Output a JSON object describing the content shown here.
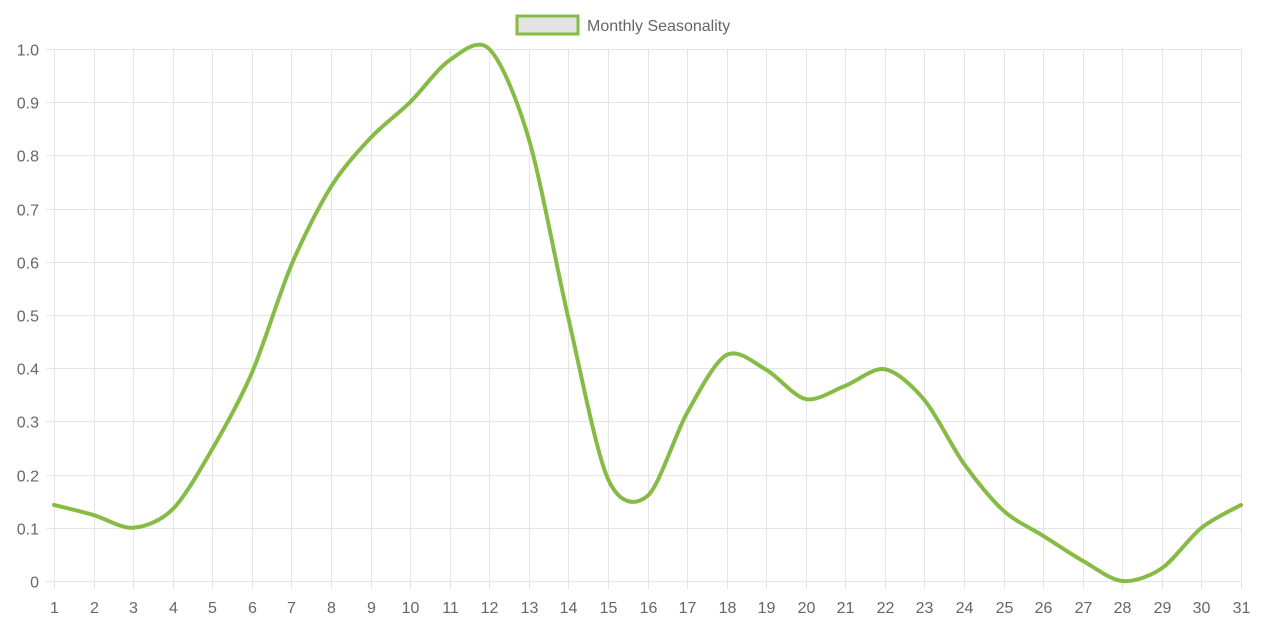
{
  "chart_data": {
    "type": "line",
    "title": "",
    "xlabel": "",
    "ylabel": "",
    "legend": {
      "position": "top",
      "entries": [
        "Monthly Seasonality"
      ]
    },
    "grid": true,
    "xlim": [
      1,
      31
    ],
    "ylim": [
      0,
      1.0
    ],
    "x": [
      1,
      2,
      3,
      4,
      5,
      6,
      7,
      8,
      9,
      10,
      11,
      12,
      13,
      14,
      15,
      16,
      17,
      18,
      19,
      20,
      21,
      22,
      23,
      24,
      25,
      26,
      27,
      28,
      29,
      30,
      31
    ],
    "y_ticks": [
      "0",
      "0.1",
      "0.2",
      "0.3",
      "0.4",
      "0.5",
      "0.6",
      "0.7",
      "0.8",
      "0.9",
      "1.0"
    ],
    "x_ticks": [
      "1",
      "2",
      "3",
      "4",
      "5",
      "6",
      "7",
      "8",
      "9",
      "10",
      "11",
      "12",
      "13",
      "14",
      "15",
      "16",
      "17",
      "18",
      "19",
      "20",
      "21",
      "22",
      "23",
      "24",
      "25",
      "26",
      "27",
      "28",
      "29",
      "30",
      "31"
    ],
    "series": [
      {
        "name": "Monthly Seasonality",
        "color": "#86bc46",
        "fill": "#e4e4e4",
        "values": [
          0.143,
          0.124,
          0.1,
          0.135,
          0.248,
          0.391,
          0.594,
          0.741,
          0.833,
          0.9,
          0.979,
          1.0,
          0.831,
          0.494,
          0.192,
          0.16,
          0.316,
          0.425,
          0.397,
          0.342,
          0.367,
          0.398,
          0.34,
          0.22,
          0.132,
          0.085,
          0.038,
          0.0,
          0.024,
          0.1,
          0.143
        ]
      }
    ]
  },
  "colors": {
    "line": "#86bc46",
    "grid": "#e5e5e5",
    "axis_text": "#666666",
    "legend_box_fill": "#e4e4e4"
  }
}
